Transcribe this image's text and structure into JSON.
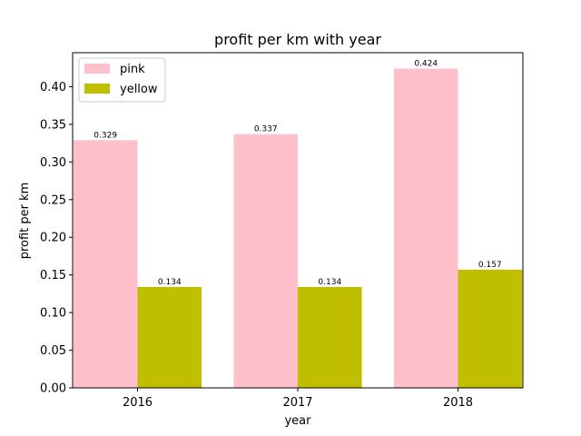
{
  "chart_data": {
    "type": "bar",
    "title": "profit per km with year",
    "xlabel": "year",
    "ylabel": "profit per km",
    "categories": [
      "2016",
      "2017",
      "2018"
    ],
    "series": [
      {
        "name": "pink",
        "color": "#ffc0cb",
        "values": [
          0.329,
          0.337,
          0.424
        ],
        "labels": [
          "0.329",
          "0.337",
          "0.424"
        ]
      },
      {
        "name": "yellow",
        "color": "#bfbf00",
        "values": [
          0.134,
          0.134,
          0.157
        ],
        "labels": [
          "0.134",
          "0.134",
          "0.157"
        ]
      }
    ],
    "ylim": [
      0,
      0.4452
    ],
    "yticks": [
      0.0,
      0.05,
      0.1,
      0.15,
      0.2,
      0.25,
      0.3,
      0.35,
      0.4
    ],
    "ytick_labels": [
      "0.00",
      "0.05",
      "0.10",
      "0.15",
      "0.20",
      "0.25",
      "0.30",
      "0.35",
      "0.40"
    ],
    "legend_position": "top-left",
    "grid": false
  }
}
